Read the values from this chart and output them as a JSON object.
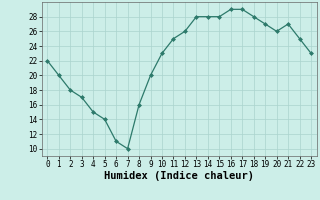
{
  "xlabel": "Humidex (Indice chaleur)",
  "x": [
    0,
    1,
    2,
    3,
    4,
    5,
    6,
    7,
    8,
    9,
    10,
    11,
    12,
    13,
    14,
    15,
    16,
    17,
    18,
    19,
    20,
    21,
    22,
    23
  ],
  "y": [
    22,
    20,
    18,
    17,
    15,
    14,
    11,
    10,
    16,
    20,
    23,
    25,
    26,
    28,
    28,
    28,
    29,
    29,
    28,
    27,
    26,
    27,
    25,
    23
  ],
  "xlim": [
    -0.5,
    23.5
  ],
  "ylim": [
    9,
    30
  ],
  "yticks": [
    10,
    12,
    14,
    16,
    18,
    20,
    22,
    24,
    26,
    28
  ],
  "xticks": [
    0,
    1,
    2,
    3,
    4,
    5,
    6,
    7,
    8,
    9,
    10,
    11,
    12,
    13,
    14,
    15,
    16,
    17,
    18,
    19,
    20,
    21,
    22,
    23
  ],
  "line_color": "#2d7a6b",
  "marker_color": "#2d7a6b",
  "bg_color": "#cceee8",
  "grid_color": "#aad4ce",
  "axis_color": "#666666",
  "label_fontsize": 6.5,
  "tick_fontsize": 5.5,
  "xlabel_fontsize": 7.5
}
